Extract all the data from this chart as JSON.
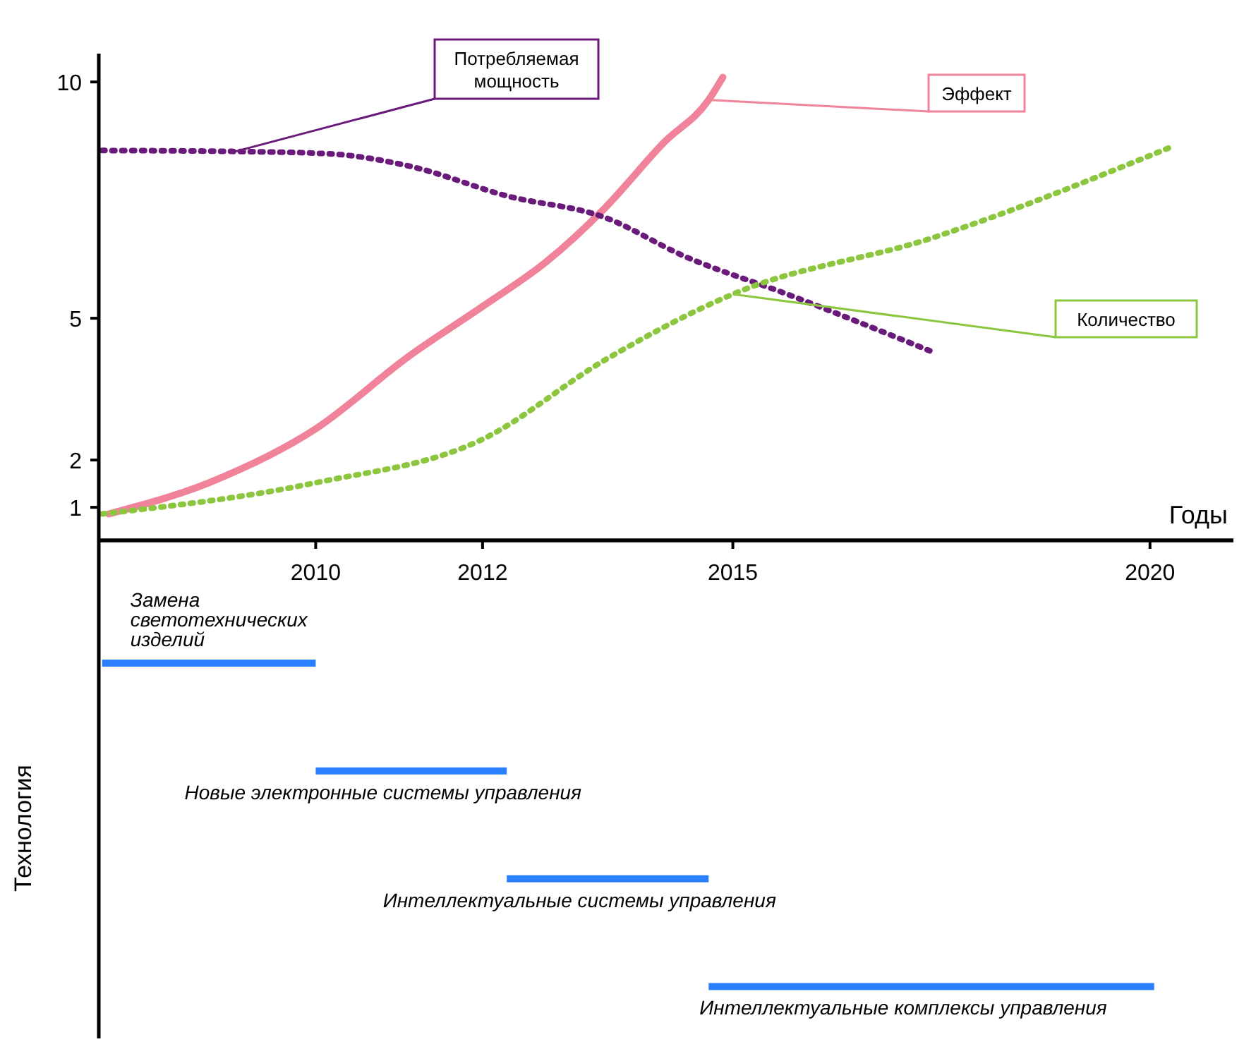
{
  "chart_data": [
    {
      "type": "line",
      "xlabel": "Годы",
      "xlim": [
        2007.4,
        2021
      ],
      "xticks": [
        2010,
        2012,
        2015,
        2020
      ],
      "ylim": [
        0.3,
        10.6
      ],
      "yticks": [
        1,
        2,
        5,
        10
      ],
      "grid": false,
      "marker": "none",
      "series": [
        {
          "name": "Эффект",
          "color": "#f0829a",
          "line_style": "solid",
          "x": [
            2007.52,
            2008.72,
            2010,
            2011.12,
            2012,
            2012.76,
            2013.47,
            2014.18,
            2014.71,
            2014.88
          ],
          "values": [
            0.86,
            1.52,
            2.66,
            4.2,
            5.25,
            6.19,
            7.34,
            8.73,
            9.62,
            10.1
          ]
        },
        {
          "name": "Потребляемая мощность",
          "color": "#6a1a7a",
          "line_style": "dotted",
          "x": [
            2007.44,
            2009.04,
            2010.16,
            2011.12,
            2012.29,
            2013.47,
            2014.41,
            2015.65,
            2017.39
          ],
          "values": [
            8.55,
            8.53,
            8.48,
            8.22,
            7.59,
            7.13,
            6.32,
            5.51,
            4.29
          ]
        },
        {
          "name": "Количество",
          "color": "#8cc63f",
          "line_style": "dotted",
          "x": [
            2007.44,
            2010,
            2012,
            2013.47,
            2015,
            2017.39,
            2020.22
          ],
          "values": [
            0.86,
            1.52,
            2.44,
            4.12,
            5.51,
            6.7,
            8.6
          ]
        }
      ]
    },
    {
      "type": "bar",
      "orientation": "horizontal",
      "ylabel": "Технология",
      "xlim": [
        2007.4,
        2021
      ],
      "tick_labels": "y",
      "color": "#2a7fff",
      "categories": [
        "Замена светотехнических изделий",
        "Новые электронные системы управления",
        "Интеллектуальные системы управления",
        "Интеллектуальные комплексы управления"
      ],
      "base": [
        2007.44,
        2010,
        2012.29,
        2014.71
      ],
      "values": [
        2.56,
        2.29,
        2.42,
        5.34
      ]
    }
  ]
}
